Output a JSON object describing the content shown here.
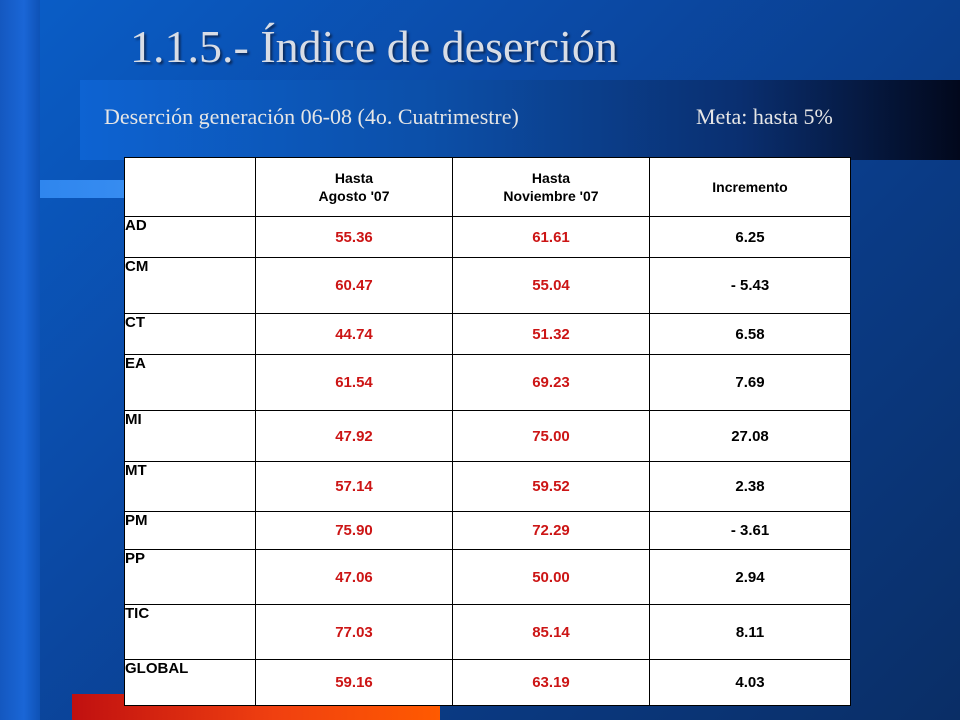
{
  "slide": {
    "title": "1.1.5.- Índice de deserción",
    "subtitle": "Deserción generación 06-08 (4o. Cuatrimestre)",
    "goal": "Meta: hasta 5%"
  },
  "table": {
    "headers": [
      {
        "line1": "Hasta",
        "line2": "Agosto '07"
      },
      {
        "line1": "Hasta",
        "line2": "Noviembre '07"
      },
      {
        "line1": "Incremento",
        "line2": ""
      }
    ],
    "rows": [
      {
        "label": "AD",
        "agosto": "55.36",
        "noviembre": "61.61",
        "incremento": "6.25"
      },
      {
        "label": "CM",
        "agosto": "60.47",
        "noviembre": "55.04",
        "incremento": "- 5.43"
      },
      {
        "label": "CT",
        "agosto": "44.74",
        "noviembre": "51.32",
        "incremento": "6.58"
      },
      {
        "label": "EA",
        "agosto": "61.54",
        "noviembre": "69.23",
        "incremento": "7.69"
      },
      {
        "label": "MI",
        "agosto": "47.92",
        "noviembre": "75.00",
        "incremento": "27.08"
      },
      {
        "label": "MT",
        "agosto": "57.14",
        "noviembre": "59.52",
        "incremento": "2.38"
      },
      {
        "label": "PM",
        "agosto": "75.90",
        "noviembre": "72.29",
        "incremento": "- 3.61"
      },
      {
        "label": "PP",
        "agosto": "47.06",
        "noviembre": "50.00",
        "incremento": "2.94"
      },
      {
        "label": "TIC",
        "agosto": "77.03",
        "noviembre": "85.14",
        "incremento": "8.11"
      },
      {
        "label": "GLOBAL",
        "agosto": "59.16",
        "noviembre": "63.19",
        "incremento": "4.03"
      }
    ]
  },
  "colors": {
    "value_red": "#cc1515",
    "background_blue": "#0b4aa6",
    "accent_orange": "#f04010"
  }
}
